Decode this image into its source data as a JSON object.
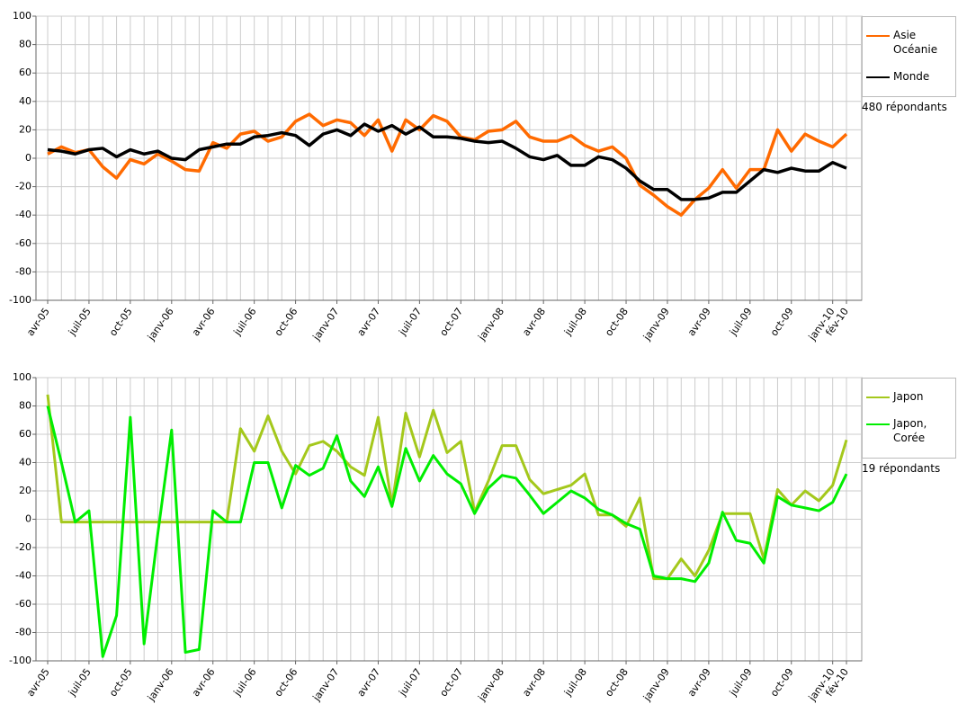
{
  "chart_data": [
    {
      "type": "line",
      "categories": [
        "avr-05",
        null,
        null,
        "juil-05",
        null,
        null,
        "oct-05",
        null,
        null,
        "janv-06",
        null,
        null,
        "avr-06",
        null,
        null,
        "juil-06",
        null,
        null,
        "oct-06",
        null,
        null,
        "janv-07",
        null,
        null,
        "avr-07",
        null,
        null,
        "juil-07",
        null,
        null,
        "oct-07",
        null,
        null,
        "janv-08",
        null,
        null,
        "avr-08",
        null,
        null,
        "juil-08",
        null,
        null,
        "oct-08",
        null,
        null,
        "janv-09",
        null,
        null,
        "avr-09",
        null,
        null,
        "juil-09",
        null,
        null,
        "oct-09",
        null,
        null,
        "janv-10",
        "fév-10"
      ],
      "series": [
        {
          "name": "Asie Océanie",
          "color": "#ff6a00",
          "values": [
            3,
            8,
            4,
            6,
            -6,
            -14,
            -1,
            -4,
            3,
            -2,
            -8,
            -9,
            11,
            7,
            17,
            19,
            12,
            15,
            26,
            31,
            23,
            27,
            25,
            16,
            27,
            5,
            27,
            20,
            30,
            26,
            15,
            13,
            19,
            20,
            26,
            15,
            12,
            12,
            16,
            9,
            5,
            8,
            0,
            -19,
            -26,
            -34,
            -40,
            -29,
            -21,
            -8,
            -21,
            -8,
            -8,
            20,
            5,
            17,
            12,
            8,
            17
          ]
        },
        {
          "name": "Monde",
          "color": "#000000",
          "values": [
            6,
            5,
            3,
            6,
            7,
            1,
            6,
            3,
            5,
            0,
            -1,
            6,
            8,
            10,
            10,
            15,
            16,
            18,
            16,
            9,
            17,
            20,
            16,
            24,
            19,
            23,
            17,
            22,
            15,
            15,
            14,
            12,
            11,
            12,
            7,
            1,
            -1,
            2,
            -5,
            -5,
            1,
            -1,
            -7,
            -16,
            -22,
            -22,
            -29,
            -29,
            -28,
            -24,
            -24,
            -16,
            -8,
            -10,
            -7,
            -9,
            -9,
            -3,
            -7
          ]
        }
      ],
      "ylim": [
        -100,
        100
      ],
      "yticks": [
        -100,
        -80,
        -60,
        -40,
        -20,
        0,
        20,
        40,
        60,
        80,
        100
      ],
      "grid": true,
      "legend": "right",
      "annotation": "480 répondants"
    },
    {
      "type": "line",
      "categories": [
        "avr-05",
        null,
        null,
        "juil-05",
        null,
        null,
        "oct-05",
        null,
        null,
        "janv-06",
        null,
        null,
        "avr-06",
        null,
        null,
        "juil-06",
        null,
        null,
        "oct-06",
        null,
        null,
        "janv-07",
        null,
        null,
        "avr-07",
        null,
        null,
        "juil-07",
        null,
        null,
        "oct-07",
        null,
        null,
        "janv-08",
        null,
        null,
        "avr-08",
        null,
        null,
        "juil-08",
        null,
        null,
        "oct-08",
        null,
        null,
        "janv-09",
        null,
        null,
        "avr-09",
        null,
        null,
        "juil-09",
        null,
        null,
        "oct-09",
        null,
        null,
        "janv-10",
        "fév-10"
      ],
      "series": [
        {
          "name": "Japon",
          "color": "#a4c81c",
          "values": [
            88,
            -2,
            -2,
            -2,
            -2,
            -2,
            -2,
            -2,
            -2,
            -2,
            -2,
            -2,
            -2,
            -2,
            64,
            48,
            73,
            48,
            32,
            52,
            55,
            48,
            37,
            31,
            72,
            10,
            75,
            44,
            77,
            47,
            55,
            5,
            27,
            52,
            52,
            28,
            18,
            21,
            24,
            32,
            3,
            3,
            -5,
            15,
            -42,
            -42,
            -28,
            -40,
            -22,
            4,
            4,
            4,
            -28,
            21,
            10,
            20,
            13,
            24,
            56
          ]
        },
        {
          "name": "Japon, Corée",
          "color": "#00ee00",
          "values": [
            80,
            40,
            -2,
            6,
            -97,
            -68,
            72,
            -88,
            -10,
            63,
            -94,
            -92,
            6,
            -2,
            -2,
            40,
            40,
            8,
            38,
            31,
            36,
            59,
            27,
            16,
            37,
            9,
            50,
            27,
            45,
            32,
            25,
            4,
            22,
            31,
            29,
            17,
            4,
            12,
            20,
            15,
            7,
            3,
            -3,
            -7,
            -40,
            -42,
            -42,
            -44,
            -31,
            5,
            -15,
            -17,
            -31,
            16,
            10,
            8,
            6,
            12,
            32
          ]
        }
      ],
      "ylim": [
        -100,
        100
      ],
      "yticks": [
        -100,
        -80,
        -60,
        -40,
        -20,
        0,
        20,
        40,
        60,
        80,
        100
      ],
      "grid": true,
      "legend": "right",
      "annotation": "19 répondants"
    }
  ]
}
